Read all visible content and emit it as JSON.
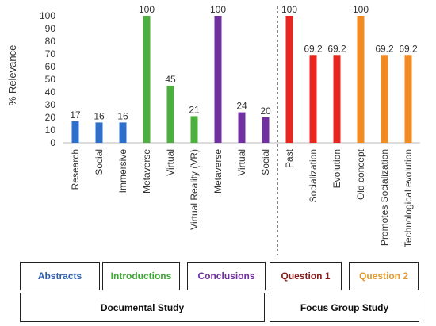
{
  "chart_data": {
    "type": "bar",
    "ylabel": "% Relevance",
    "ylim": [
      0,
      100
    ],
    "yticks": [
      0,
      10,
      20,
      30,
      40,
      50,
      60,
      70,
      80,
      90,
      100
    ],
    "grid": false,
    "categories": [
      "Research",
      "Social",
      "Immersive",
      "Metaverse",
      "Virtual",
      "Virtual Reality (VR)",
      "Metaverse",
      "Virtual",
      "Social",
      "Past",
      "Socialization",
      "Evolution",
      "Old concept",
      "Promotes Socialization",
      "Technological evolution"
    ],
    "values": [
      17,
      16,
      16,
      100,
      45,
      21,
      100,
      24,
      20,
      100,
      69.2,
      69.2,
      100,
      69.2,
      69.2
    ],
    "data_labels": [
      "17",
      "16",
      "16",
      "100",
      "45",
      "21",
      "100",
      "24",
      "20",
      "100",
      "69.2",
      "69.2",
      "100",
      "69.2",
      "69.2"
    ],
    "groups": [
      {
        "label": "Abstracts",
        "color": "#2E5FAF",
        "bar_color": "#2F6FCC",
        "count": 3
      },
      {
        "label": "Introductions",
        "color": "#3FA835",
        "bar_color": "#4CAF3F",
        "count": 3
      },
      {
        "label": "Conclusions",
        "color": "#7030A0",
        "bar_color": "#7030A0",
        "count": 3
      },
      {
        "label": "Question 1",
        "color": "#8B1A1A",
        "bar_color": "#E8251F",
        "count": 3
      },
      {
        "label": "Question 2",
        "color": "#E59A2C",
        "bar_color": "#F28B22",
        "count": 3
      }
    ],
    "studies": [
      {
        "label": "Documental Study"
      },
      {
        "label": "Focus Group Study"
      }
    ]
  }
}
